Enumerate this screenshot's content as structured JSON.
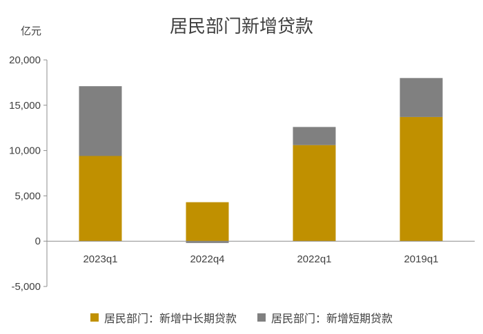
{
  "chart_data": {
    "type": "bar",
    "stacked": true,
    "title": "居民部门新增贷款",
    "ylabel": "亿元",
    "xlabel": "",
    "categories": [
      "2023q1",
      "2022q4",
      "2022q1",
      "2019q1"
    ],
    "ylim": [
      -5000,
      20000
    ],
    "yticks": [
      -5000,
      0,
      5000,
      10000,
      15000,
      20000
    ],
    "ytick_labels": [
      "-5,000",
      "0",
      "5,000",
      "10,000",
      "15,000",
      "20,000"
    ],
    "series": [
      {
        "name": "居民部门：新增中长期贷款",
        "values": [
          9400,
          4300,
          10600,
          13700
        ],
        "color": "#c09000"
      },
      {
        "name": "居民部门：新增短期贷款",
        "values": [
          7700,
          -200,
          2000,
          4300
        ],
        "color": "#808080"
      }
    ],
    "grid": false,
    "legend_position": "bottom"
  }
}
